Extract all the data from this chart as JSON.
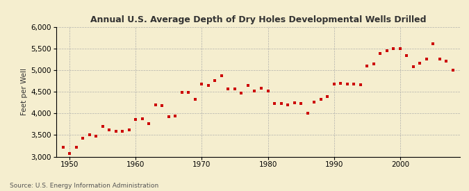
{
  "title": "Annual U.S. Average Depth of Dry Holes Developmental Wells Drilled",
  "ylabel": "Feet per Well",
  "source": "Source: U.S. Energy Information Administration",
  "background_color": "#f5eecf",
  "marker_color": "#cc0000",
  "xlim": [
    1948,
    2009
  ],
  "ylim": [
    3000,
    6000
  ],
  "yticks": [
    3000,
    3500,
    4000,
    4500,
    5000,
    5500,
    6000
  ],
  "xticks": [
    1950,
    1960,
    1970,
    1980,
    1990,
    2000
  ],
  "years": [
    1949,
    1950,
    1951,
    1952,
    1953,
    1954,
    1955,
    1956,
    1957,
    1958,
    1959,
    1960,
    1961,
    1962,
    1963,
    1964,
    1965,
    1966,
    1967,
    1968,
    1969,
    1970,
    1971,
    1972,
    1973,
    1974,
    1975,
    1976,
    1977,
    1978,
    1979,
    1980,
    1981,
    1982,
    1983,
    1984,
    1985,
    1986,
    1987,
    1988,
    1989,
    1990,
    1991,
    1992,
    1993,
    1994,
    1995,
    1996,
    1997,
    1998,
    1999,
    2000,
    2001,
    2002,
    2003,
    2004,
    2005,
    2006,
    2007,
    2008
  ],
  "values": [
    3220,
    3080,
    3220,
    3430,
    3500,
    3480,
    3700,
    3620,
    3590,
    3580,
    3610,
    3860,
    3880,
    3760,
    4200,
    4180,
    3920,
    3940,
    4480,
    4480,
    4330,
    4680,
    4640,
    4750,
    4870,
    4560,
    4560,
    4460,
    4640,
    4520,
    4580,
    4510,
    4230,
    4220,
    4200,
    4240,
    4230,
    4000,
    4260,
    4320,
    4390,
    4680,
    4690,
    4670,
    4670,
    4660,
    5100,
    5140,
    5380,
    5440,
    5490,
    5500,
    5340,
    5080,
    5150,
    5250,
    5600,
    5260,
    5200,
    5000
  ]
}
